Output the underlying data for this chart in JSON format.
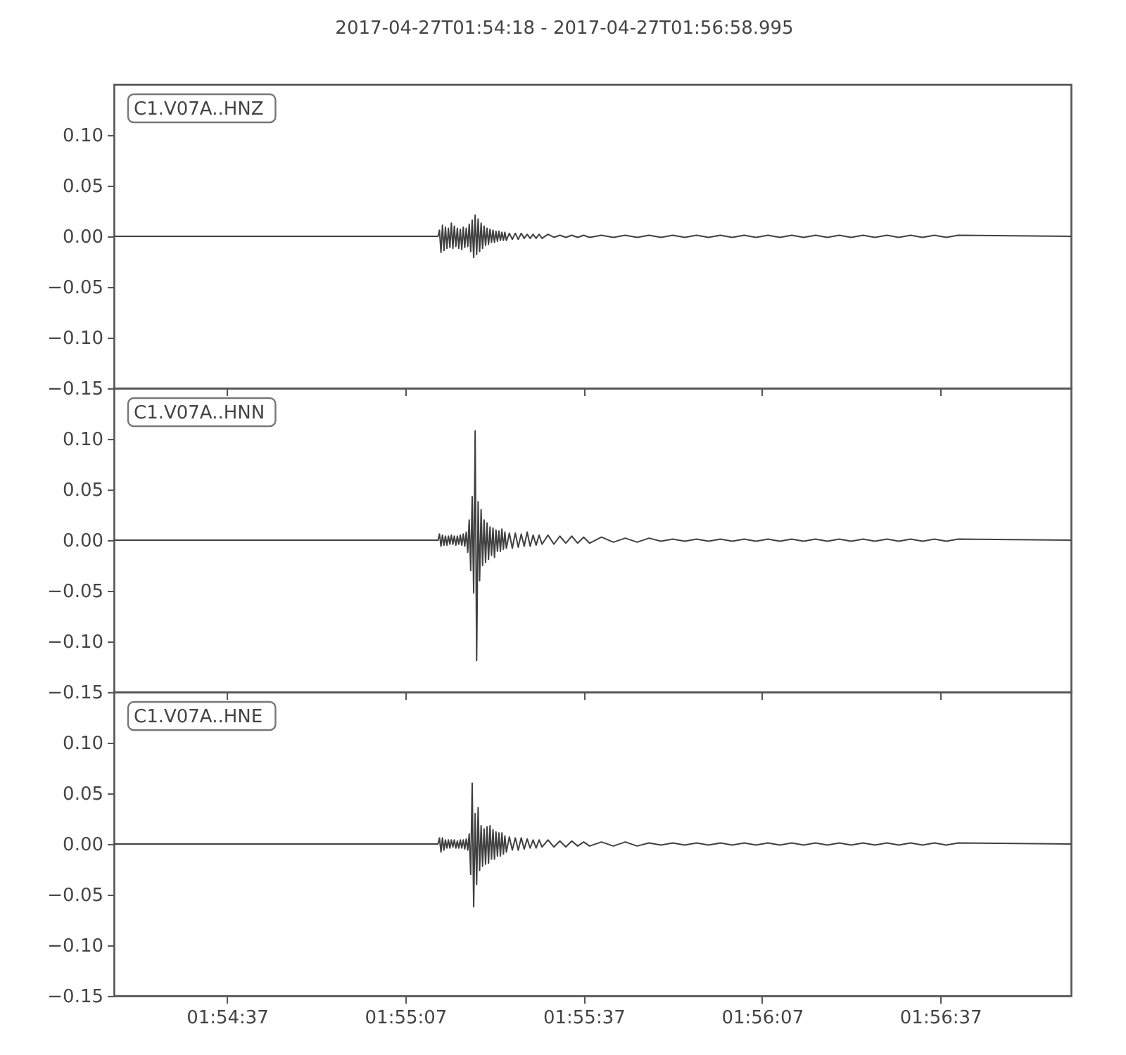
{
  "chart_data": [
    {
      "type": "line",
      "title": "2017-04-27T01:54:18  -  2017-04-27T01:56:58.995",
      "annotations": [
        "C1.V07A..HNZ"
      ],
      "tick_labels": "y",
      "xlim": [
        "2017-04-27T01:54:18",
        "2017-04-27T01:56:58.995"
      ],
      "xticks": [
        "2017-04-27T01:54:37",
        "2017-04-27T01:55:07",
        "2017-04-27T01:55:37",
        "2017-04-27T01:56:07",
        "2017-04-27T01:56:37"
      ],
      "ylim": [
        -0.15,
        0.15
      ],
      "yticks": [
        {
          "value": -0.15,
          "label": "−0.15"
        },
        {
          "value": -0.1,
          "label": "−0.10"
        },
        {
          "value": -0.05,
          "label": "−0.05"
        },
        {
          "value": 0,
          "label": "0.00"
        },
        {
          "value": 0.05,
          "label": "0.05"
        },
        {
          "value": 0.1,
          "label": "0.10"
        }
      ],
      "x": [
        "2017-04-27T01:54:18",
        "2017-04-27T01:55:12.5",
        "2017-04-27T01:55:12.75",
        "2017-04-27T01:55:13",
        "2017-04-27T01:55:13.25",
        "2017-04-27T01:55:13.5",
        "2017-04-27T01:55:13.75",
        "2017-04-27T01:55:14",
        "2017-04-27T01:55:14.25",
        "2017-04-27T01:55:14.5",
        "2017-04-27T01:55:14.75",
        "2017-04-27T01:55:15",
        "2017-04-27T01:55:15.25",
        "2017-04-27T01:55:15.5",
        "2017-04-27T01:55:15.75",
        "2017-04-27T01:55:16",
        "2017-04-27T01:55:16.25",
        "2017-04-27T01:55:16.5",
        "2017-04-27T01:55:16.75",
        "2017-04-27T01:55:17",
        "2017-04-27T01:55:17.25",
        "2017-04-27T01:55:17.5",
        "2017-04-27T01:55:17.75",
        "2017-04-27T01:55:18",
        "2017-04-27T01:55:18.25",
        "2017-04-27T01:55:18.5",
        "2017-04-27T01:55:18.75",
        "2017-04-27T01:55:19",
        "2017-04-27T01:55:19.25",
        "2017-04-27T01:55:19.5",
        "2017-04-27T01:55:19.75",
        "2017-04-27T01:55:20",
        "2017-04-27T01:55:20.25",
        "2017-04-27T01:55:20.5",
        "2017-04-27T01:55:20.75",
        "2017-04-27T01:55:21",
        "2017-04-27T01:55:21.25",
        "2017-04-27T01:55:21.5",
        "2017-04-27T01:55:21.75",
        "2017-04-27T01:55:22",
        "2017-04-27T01:55:22.25",
        "2017-04-27T01:55:22.5",
        "2017-04-27T01:55:22.75",
        "2017-04-27T01:55:23",
        "2017-04-27T01:55:23.25",
        "2017-04-27T01:55:23.5",
        "2017-04-27T01:55:23.75",
        "2017-04-27T01:55:24",
        "2017-04-27T01:55:24.5",
        "2017-04-27T01:55:25",
        "2017-04-27T01:55:25.5",
        "2017-04-27T01:55:26",
        "2017-04-27T01:55:26.5",
        "2017-04-27T01:55:27",
        "2017-04-27T01:55:27.5",
        "2017-04-27T01:55:28",
        "2017-04-27T01:55:28.5",
        "2017-04-27T01:55:29",
        "2017-04-27T01:55:29.5",
        "2017-04-27T01:55:30",
        "2017-04-27T01:55:31",
        "2017-04-27T01:55:32",
        "2017-04-27T01:55:33",
        "2017-04-27T01:55:34",
        "2017-04-27T01:55:35",
        "2017-04-27T01:55:36",
        "2017-04-27T01:55:37",
        "2017-04-27T01:55:38",
        "2017-04-27T01:55:40",
        "2017-04-27T01:55:42",
        "2017-04-27T01:55:44",
        "2017-04-27T01:55:46",
        "2017-04-27T01:55:48",
        "2017-04-27T01:55:50",
        "2017-04-27T01:55:52",
        "2017-04-27T01:55:54",
        "2017-04-27T01:55:56",
        "2017-04-27T01:55:58",
        "2017-04-27T01:56:00",
        "2017-04-27T01:56:02",
        "2017-04-27T01:56:04",
        "2017-04-27T01:56:06",
        "2017-04-27T01:56:08",
        "2017-04-27T01:56:10",
        "2017-04-27T01:56:12",
        "2017-04-27T01:56:14",
        "2017-04-27T01:56:16",
        "2017-04-27T01:56:18",
        "2017-04-27T01:56:20",
        "2017-04-27T01:56:22",
        "2017-04-27T01:56:24",
        "2017-04-27T01:56:26",
        "2017-04-27T01:56:28",
        "2017-04-27T01:56:30",
        "2017-04-27T01:56:32",
        "2017-04-27T01:56:34",
        "2017-04-27T01:56:36",
        "2017-04-27T01:56:38",
        "2017-04-27T01:56:40",
        "2017-04-27T01:56:58.995"
      ],
      "series": [
        {
          "color": "#404040",
          "values": [
            0,
            0,
            0.006,
            -0.016,
            0.011,
            -0.014,
            0.009,
            -0.012,
            0.008,
            -0.011,
            0.013,
            -0.012,
            0.01,
            -0.01,
            0.008,
            -0.012,
            0.007,
            -0.013,
            0.009,
            -0.011,
            0.008,
            -0.01,
            0.012,
            -0.015,
            0.016,
            -0.021,
            0.021,
            -0.018,
            0.017,
            -0.015,
            0.013,
            -0.012,
            0.01,
            -0.009,
            0.008,
            -0.008,
            0.007,
            -0.006,
            0.006,
            -0.006,
            0.005,
            -0.005,
            0.005,
            -0.004,
            0.004,
            -0.004,
            0.004,
            -0.004,
            0.003,
            -0.003,
            0.003,
            -0.003,
            0.003,
            -0.002,
            0.002,
            -0.002,
            0.002,
            -0.002,
            0.002,
            -0.002,
            0.002,
            -0.001,
            0.001,
            -0.001,
            0.001,
            -0.001,
            0.001,
            -0.001,
            0.001,
            -0.001,
            0.001,
            -0.001,
            0.001,
            -0.001,
            0.001,
            -0.001,
            0.001,
            -0.001,
            0.001,
            -0.001,
            0.001,
            -0.001,
            0.001,
            -0.001,
            0.001,
            -0.001,
            0.001,
            -0.001,
            0.001,
            -0.001,
            0.001,
            -0.001,
            0.001,
            -0.001,
            0.001,
            -0.001,
            0.001,
            -0.001,
            0.001,
            0
          ]
        }
      ]
    },
    {
      "type": "line",
      "annotations": [
        "C1.V07A..HNN"
      ],
      "tick_labels": "y",
      "xlim": [
        "2017-04-27T01:54:18",
        "2017-04-27T01:56:58.995"
      ],
      "xticks": [
        "2017-04-27T01:54:37",
        "2017-04-27T01:55:07",
        "2017-04-27T01:55:37",
        "2017-04-27T01:56:07",
        "2017-04-27T01:56:37"
      ],
      "ylim": [
        -0.15,
        0.15
      ],
      "yticks": [
        {
          "value": -0.15,
          "label": "−0.15"
        },
        {
          "value": -0.1,
          "label": "−0.10"
        },
        {
          "value": -0.05,
          "label": "−0.05"
        },
        {
          "value": 0,
          "label": "0.00"
        },
        {
          "value": 0.05,
          "label": "0.05"
        },
        {
          "value": 0.1,
          "label": "0.10"
        }
      ],
      "x": [
        "2017-04-27T01:54:18",
        "2017-04-27T01:55:12.5",
        "2017-04-27T01:55:12.75",
        "2017-04-27T01:55:13",
        "2017-04-27T01:55:13.25",
        "2017-04-27T01:55:13.5",
        "2017-04-27T01:55:13.75",
        "2017-04-27T01:55:14",
        "2017-04-27T01:55:14.25",
        "2017-04-27T01:55:14.5",
        "2017-04-27T01:55:14.75",
        "2017-04-27T01:55:15",
        "2017-04-27T01:55:15.25",
        "2017-04-27T01:55:15.5",
        "2017-04-27T01:55:15.75",
        "2017-04-27T01:55:16",
        "2017-04-27T01:55:16.25",
        "2017-04-27T01:55:16.5",
        "2017-04-27T01:55:16.75",
        "2017-04-27T01:55:17",
        "2017-04-27T01:55:17.25",
        "2017-04-27T01:55:17.5",
        "2017-04-27T01:55:17.75",
        "2017-04-27T01:55:18",
        "2017-04-27T01:55:18.25",
        "2017-04-27T01:55:18.5",
        "2017-04-27T01:55:18.75",
        "2017-04-27T01:55:19",
        "2017-04-27T01:55:19.25",
        "2017-04-27T01:55:19.5",
        "2017-04-27T01:55:19.75",
        "2017-04-27T01:55:20",
        "2017-04-27T01:55:20.25",
        "2017-04-27T01:55:20.5",
        "2017-04-27T01:55:20.75",
        "2017-04-27T01:55:21",
        "2017-04-27T01:55:21.25",
        "2017-04-27T01:55:21.5",
        "2017-04-27T01:55:21.75",
        "2017-04-27T01:55:22",
        "2017-04-27T01:55:22.25",
        "2017-04-27T01:55:22.5",
        "2017-04-27T01:55:22.75",
        "2017-04-27T01:55:23",
        "2017-04-27T01:55:23.25",
        "2017-04-27T01:55:23.5",
        "2017-04-27T01:55:23.75",
        "2017-04-27T01:55:24",
        "2017-04-27T01:55:24.5",
        "2017-04-27T01:55:25",
        "2017-04-27T01:55:25.5",
        "2017-04-27T01:55:26",
        "2017-04-27T01:55:26.5",
        "2017-04-27T01:55:27",
        "2017-04-27T01:55:27.5",
        "2017-04-27T01:55:28",
        "2017-04-27T01:55:28.5",
        "2017-04-27T01:55:29",
        "2017-04-27T01:55:29.5",
        "2017-04-27T01:55:30",
        "2017-04-27T01:55:31",
        "2017-04-27T01:55:32",
        "2017-04-27T01:55:33",
        "2017-04-27T01:55:34",
        "2017-04-27T01:55:35",
        "2017-04-27T01:55:36",
        "2017-04-27T01:55:37",
        "2017-04-27T01:55:38",
        "2017-04-27T01:55:40",
        "2017-04-27T01:55:42",
        "2017-04-27T01:55:44",
        "2017-04-27T01:55:46",
        "2017-04-27T01:55:48",
        "2017-04-27T01:55:50",
        "2017-04-27T01:55:52",
        "2017-04-27T01:55:54",
        "2017-04-27T01:55:56",
        "2017-04-27T01:55:58",
        "2017-04-27T01:56:00",
        "2017-04-27T01:56:02",
        "2017-04-27T01:56:04",
        "2017-04-27T01:56:06",
        "2017-04-27T01:56:08",
        "2017-04-27T01:56:10",
        "2017-04-27T01:56:12",
        "2017-04-27T01:56:14",
        "2017-04-27T01:56:16",
        "2017-04-27T01:56:18",
        "2017-04-27T01:56:20",
        "2017-04-27T01:56:22",
        "2017-04-27T01:56:24",
        "2017-04-27T01:56:26",
        "2017-04-27T01:56:28",
        "2017-04-27T01:56:30",
        "2017-04-27T01:56:32",
        "2017-04-27T01:56:34",
        "2017-04-27T01:56:36",
        "2017-04-27T01:56:38",
        "2017-04-27T01:56:40",
        "2017-04-27T01:56:58.995"
      ],
      "series": [
        {
          "color": "#404040",
          "values": [
            0,
            0,
            0.006,
            -0.006,
            0.005,
            -0.005,
            0.004,
            -0.005,
            0.004,
            -0.004,
            0.005,
            -0.004,
            0.004,
            -0.005,
            0.004,
            -0.004,
            0.005,
            -0.005,
            0.006,
            -0.006,
            0.008,
            -0.012,
            0.02,
            -0.03,
            0.043,
            -0.052,
            0.108,
            -0.119,
            0.038,
            -0.04,
            0.03,
            -0.025,
            0.02,
            -0.022,
            0.017,
            -0.019,
            0.013,
            -0.015,
            0.012,
            -0.017,
            0.01,
            -0.011,
            0.009,
            -0.011,
            0.011,
            -0.009,
            0.008,
            -0.008,
            0.007,
            -0.008,
            0.007,
            -0.007,
            0.006,
            -0.006,
            0.008,
            -0.006,
            0.005,
            -0.005,
            0.005,
            -0.004,
            0.005,
            -0.004,
            0.004,
            -0.003,
            0.004,
            -0.003,
            0.003,
            -0.003,
            0.003,
            -0.002,
            0.002,
            -0.002,
            0.002,
            -0.001,
            0.001,
            -0.001,
            0.001,
            -0.001,
            0.001,
            -0.001,
            0.001,
            -0.001,
            0.001,
            -0.001,
            0.001,
            -0.001,
            0.001,
            -0.001,
            0.001,
            -0.001,
            0.001,
            -0.001,
            0.001,
            -0.001,
            0.001,
            -0.001,
            0.001,
            -0.001,
            0.001,
            0
          ]
        }
      ]
    },
    {
      "type": "line",
      "annotations": [
        "C1.V07A..HNE"
      ],
      "xlim": [
        "2017-04-27T01:54:18",
        "2017-04-27T01:56:58.995"
      ],
      "xticks": [
        {
          "value": "2017-04-27T01:54:37",
          "label": "01:54:37"
        },
        {
          "value": "2017-04-27T01:55:07",
          "label": "01:55:07"
        },
        {
          "value": "2017-04-27T01:55:37",
          "label": "01:55:37"
        },
        {
          "value": "2017-04-27T01:56:07",
          "label": "01:56:07"
        },
        {
          "value": "2017-04-27T01:56:37",
          "label": "01:56:37"
        }
      ],
      "ylim": [
        -0.15,
        0.15
      ],
      "yticks": [
        {
          "value": -0.15,
          "label": "−0.15"
        },
        {
          "value": -0.1,
          "label": "−0.10"
        },
        {
          "value": -0.05,
          "label": "−0.05"
        },
        {
          "value": 0,
          "label": "0.00"
        },
        {
          "value": 0.05,
          "label": "0.05"
        },
        {
          "value": 0.1,
          "label": "0.10"
        }
      ],
      "x": [
        "2017-04-27T01:54:18",
        "2017-04-27T01:55:12.5",
        "2017-04-27T01:55:12.75",
        "2017-04-27T01:55:13",
        "2017-04-27T01:55:13.25",
        "2017-04-27T01:55:13.5",
        "2017-04-27T01:55:13.75",
        "2017-04-27T01:55:14",
        "2017-04-27T01:55:14.25",
        "2017-04-27T01:55:14.5",
        "2017-04-27T01:55:14.75",
        "2017-04-27T01:55:15",
        "2017-04-27T01:55:15.25",
        "2017-04-27T01:55:15.5",
        "2017-04-27T01:55:15.75",
        "2017-04-27T01:55:16",
        "2017-04-27T01:55:16.25",
        "2017-04-27T01:55:16.5",
        "2017-04-27T01:55:16.75",
        "2017-04-27T01:55:17",
        "2017-04-27T01:55:17.25",
        "2017-04-27T01:55:17.5",
        "2017-04-27T01:55:17.75",
        "2017-04-27T01:55:18",
        "2017-04-27T01:55:18.25",
        "2017-04-27T01:55:18.5",
        "2017-04-27T01:55:18.75",
        "2017-04-27T01:55:19",
        "2017-04-27T01:55:19.25",
        "2017-04-27T01:55:19.5",
        "2017-04-27T01:55:19.75",
        "2017-04-27T01:55:20",
        "2017-04-27T01:55:20.25",
        "2017-04-27T01:55:20.5",
        "2017-04-27T01:55:20.75",
        "2017-04-27T01:55:21",
        "2017-04-27T01:55:21.25",
        "2017-04-27T01:55:21.5",
        "2017-04-27T01:55:21.75",
        "2017-04-27T01:55:22",
        "2017-04-27T01:55:22.25",
        "2017-04-27T01:55:22.5",
        "2017-04-27T01:55:22.75",
        "2017-04-27T01:55:23",
        "2017-04-27T01:55:23.25",
        "2017-04-27T01:55:23.5",
        "2017-04-27T01:55:23.75",
        "2017-04-27T01:55:24",
        "2017-04-27T01:55:24.5",
        "2017-04-27T01:55:25",
        "2017-04-27T01:55:25.5",
        "2017-04-27T01:55:26",
        "2017-04-27T01:55:26.5",
        "2017-04-27T01:55:27",
        "2017-04-27T01:55:27.5",
        "2017-04-27T01:55:28",
        "2017-04-27T01:55:28.5",
        "2017-04-27T01:55:29",
        "2017-04-27T01:55:29.5",
        "2017-04-27T01:55:30",
        "2017-04-27T01:55:31",
        "2017-04-27T01:55:32",
        "2017-04-27T01:55:33",
        "2017-04-27T01:55:34",
        "2017-04-27T01:55:35",
        "2017-04-27T01:55:36",
        "2017-04-27T01:55:37",
        "2017-04-27T01:55:38",
        "2017-04-27T01:55:40",
        "2017-04-27T01:55:42",
        "2017-04-27T01:55:44",
        "2017-04-27T01:55:46",
        "2017-04-27T01:55:48",
        "2017-04-27T01:55:50",
        "2017-04-27T01:55:52",
        "2017-04-27T01:55:54",
        "2017-04-27T01:55:56",
        "2017-04-27T01:55:58",
        "2017-04-27T01:56:00",
        "2017-04-27T01:56:02",
        "2017-04-27T01:56:04",
        "2017-04-27T01:56:06",
        "2017-04-27T01:56:08",
        "2017-04-27T01:56:10",
        "2017-04-27T01:56:12",
        "2017-04-27T01:56:14",
        "2017-04-27T01:56:16",
        "2017-04-27T01:56:18",
        "2017-04-27T01:56:20",
        "2017-04-27T01:56:22",
        "2017-04-27T01:56:24",
        "2017-04-27T01:56:26",
        "2017-04-27T01:56:28",
        "2017-04-27T01:56:30",
        "2017-04-27T01:56:32",
        "2017-04-27T01:56:34",
        "2017-04-27T01:56:36",
        "2017-04-27T01:56:38",
        "2017-04-27T01:56:40",
        "2017-04-27T01:56:58.995"
      ],
      "series": [
        {
          "color": "#404040",
          "values": [
            0,
            0,
            0.006,
            -0.008,
            0.006,
            -0.006,
            0.004,
            -0.004,
            0.004,
            -0.004,
            0.004,
            -0.003,
            0.004,
            -0.004,
            0.003,
            -0.004,
            0.004,
            -0.004,
            0.004,
            -0.005,
            0.005,
            -0.006,
            0.01,
            -0.03,
            0.06,
            -0.062,
            0.03,
            -0.04,
            0.036,
            -0.026,
            0.018,
            -0.022,
            0.015,
            -0.02,
            0.017,
            -0.019,
            0.018,
            -0.015,
            0.014,
            -0.015,
            0.012,
            -0.012,
            0.011,
            -0.012,
            0.011,
            -0.01,
            0.008,
            -0.008,
            0.007,
            -0.006,
            0.006,
            -0.006,
            0.006,
            -0.005,
            0.005,
            -0.004,
            0.004,
            -0.004,
            0.004,
            -0.003,
            0.004,
            -0.003,
            0.003,
            -0.003,
            0.003,
            -0.002,
            0.002,
            -0.002,
            0.002,
            -0.002,
            0.002,
            -0.002,
            0.001,
            -0.001,
            0.001,
            -0.001,
            0.001,
            -0.001,
            0.001,
            -0.001,
            0.001,
            -0.001,
            0.001,
            -0.001,
            0.001,
            -0.001,
            0.001,
            -0.001,
            0.001,
            -0.001,
            0.001,
            -0.001,
            0.001,
            -0.001,
            0.001,
            -0.001,
            0.001,
            -0.001,
            0.001,
            0
          ]
        }
      ]
    }
  ]
}
